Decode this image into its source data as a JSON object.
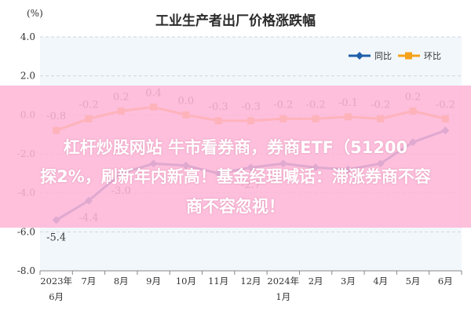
{
  "chart_data": {
    "type": "line",
    "title": "工业生产者出厂价格涨跌幅",
    "ylabel": "(%)",
    "ylim": [
      -8.0,
      4.0
    ],
    "yticks": [
      "4.0",
      "2.0",
      "0.0",
      "-2.0",
      "-4.0",
      "-6.0",
      "-8.0"
    ],
    "grid": true,
    "legend": "top-right",
    "x": [
      "2023年 6月",
      "7月",
      "8月",
      "9月",
      "10月",
      "11月",
      "12月",
      "2024年 1月",
      "2月",
      "3月",
      "4月",
      "5月",
      "6月"
    ],
    "xtick_top": [
      "2023年",
      "7月",
      "8月",
      "9月",
      "10月",
      "11月",
      "12月",
      "2024年",
      "2月",
      "3月",
      "4月",
      "5月",
      "6月"
    ],
    "xtick_bottom": [
      "6月",
      "",
      "",
      "",
      "",
      "",
      "",
      "1月",
      "",
      "",
      "",
      "",
      ""
    ],
    "series": [
      {
        "name": "同比",
        "color": "#1f5fa8",
        "values": [
          -5.4,
          -4.4,
          -3.0,
          -2.5,
          -2.6,
          -3.0,
          -2.7,
          -2.5,
          -2.7,
          -2.8,
          -2.5,
          -1.4,
          -0.8
        ],
        "labels": [
          "-5.4",
          "-4.4",
          "-3.0",
          "",
          "",
          "",
          "-2.7",
          "",
          "",
          "",
          "",
          "",
          ""
        ]
      },
      {
        "name": "环比",
        "color": "#f5a21b",
        "values": [
          -0.8,
          -0.2,
          0.2,
          0.4,
          0.0,
          -0.3,
          -0.3,
          -0.2,
          -0.2,
          -0.1,
          -0.2,
          0.2,
          -0.2
        ],
        "labels": [
          "-0.8",
          "-0.2",
          "0.2",
          "0.4",
          "0.0",
          "-0.3",
          "-0.3",
          "-0.2",
          "-0.2",
          "-0.1",
          "-0.2",
          "0.2",
          "-0.2"
        ]
      }
    ]
  },
  "banner": {
    "line1": "杠杆炒股网站 牛市看券商，券商ETF（51200",
    "line2": "探2%，刷新年内新高！基金经理喊话：滞涨券商不容",
    "line3": "商不容忽视！"
  }
}
